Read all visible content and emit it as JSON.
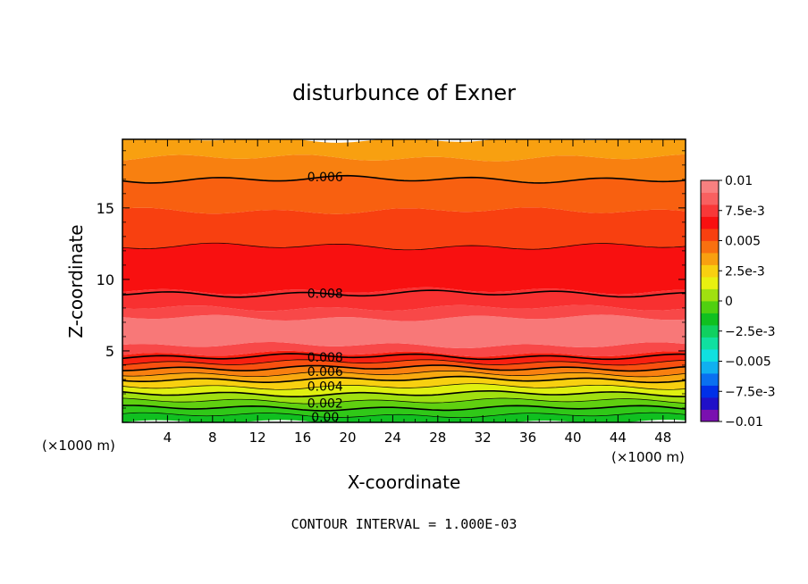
{
  "chart_data": {
    "type": "contour",
    "title": "disturbunce of Exner",
    "xlabel": "X-coordinate",
    "ylabel": "Z-coordinate",
    "x_unit_left": "(×1000 m)",
    "x_unit_right": "(×1000 m)",
    "footer": "CONTOUR INTERVAL = 1.000E-03",
    "xlim": [
      0,
      50
    ],
    "ylim": [
      0,
      19.8
    ],
    "x_ticks": [
      4,
      8,
      12,
      16,
      20,
      24,
      28,
      32,
      36,
      40,
      44,
      48
    ],
    "x_tick_labels": [
      "4",
      "8",
      "12",
      "16",
      "20",
      "24",
      "28",
      "32",
      "36",
      "40",
      "44",
      "48"
    ],
    "y_ticks": [
      5,
      10,
      15
    ],
    "y_tick_labels": [
      "5",
      "10",
      "15"
    ],
    "colorbar": {
      "min": -0.01,
      "max": 0.01,
      "labels": [
        "0.01",
        "7.5e-3",
        "0.005",
        "2.5e-3",
        "0",
        "−2.5e-3",
        "−0.005",
        "−7.5e-3",
        "−0.01"
      ],
      "colors": [
        "#7a10b0",
        "#2010c8",
        "#0030e8",
        "#0a70f0",
        "#10b0f0",
        "#10e0e0",
        "#10e0a0",
        "#10d060",
        "#10c020",
        "#50d010",
        "#a0e010",
        "#e8f010",
        "#f8d010",
        "#f8a010",
        "#f87010",
        "#f84010",
        "#f81010",
        "#f83838",
        "#f86060",
        "#f88080"
      ]
    },
    "fill_bands": [
      {
        "y_bottom": 0.0,
        "y_top": 0.5,
        "color": "#10c020"
      },
      {
        "y_bottom": 0.5,
        "y_top": 1.0,
        "color": "#30c818"
      },
      {
        "y_bottom": 1.0,
        "y_top": 1.5,
        "color": "#60d010"
      },
      {
        "y_bottom": 1.5,
        "y_top": 2.0,
        "color": "#a0e010"
      },
      {
        "y_bottom": 2.0,
        "y_top": 2.5,
        "color": "#e0f010"
      },
      {
        "y_bottom": 2.5,
        "y_top": 3.0,
        "color": "#f8d010"
      },
      {
        "y_bottom": 3.0,
        "y_top": 3.4,
        "color": "#f8a810"
      },
      {
        "y_bottom": 3.4,
        "y_top": 3.8,
        "color": "#f88010"
      },
      {
        "y_bottom": 3.8,
        "y_top": 4.2,
        "color": "#f85010"
      },
      {
        "y_bottom": 4.2,
        "y_top": 4.8,
        "color": "#f82010"
      },
      {
        "y_bottom": 4.8,
        "y_top": 5.4,
        "color": "#f84848"
      },
      {
        "y_bottom": 5.4,
        "y_top": 7.3,
        "color": "#f87878"
      },
      {
        "y_bottom": 7.3,
        "y_top": 8.0,
        "color": "#f84848"
      },
      {
        "y_bottom": 8.0,
        "y_top": 9.2,
        "color": "#f83030"
      },
      {
        "y_bottom": 9.2,
        "y_top": 12.3,
        "color": "#f81010"
      },
      {
        "y_bottom": 12.3,
        "y_top": 14.8,
        "color": "#f84010"
      },
      {
        "y_bottom": 14.8,
        "y_top": 17.0,
        "color": "#f86010"
      },
      {
        "y_bottom": 17.0,
        "y_top": 18.5,
        "color": "#f88010"
      },
      {
        "y_bottom": 18.5,
        "y_top": 19.8,
        "color": "#f8a010"
      }
    ],
    "contour_lines": [
      {
        "z": 0.5,
        "bold": false
      },
      {
        "z": 1.0,
        "bold": true
      },
      {
        "z": 1.5,
        "bold": false
      },
      {
        "z": 2.0,
        "bold": true
      },
      {
        "z": 2.5,
        "bold": false
      },
      {
        "z": 3.0,
        "bold": true
      },
      {
        "z": 3.4,
        "bold": false
      },
      {
        "z": 3.8,
        "bold": true
      },
      {
        "z": 4.2,
        "bold": false
      },
      {
        "z": 4.6,
        "bold": true
      },
      {
        "z": 9.0,
        "bold": true
      },
      {
        "z": 12.3,
        "bold": false
      },
      {
        "z": 17.0,
        "bold": true
      }
    ],
    "contour_labels": [
      {
        "text": "0.006",
        "x": 18,
        "y": 17.0
      },
      {
        "text": "0.008",
        "x": 18,
        "y": 9.0
      },
      {
        "text": "0.008",
        "x": 18,
        "y": 4.5
      },
      {
        "text": "0.006",
        "x": 18,
        "y": 3.4
      },
      {
        "text": "0.004",
        "x": 18,
        "y": 2.5
      },
      {
        "text": "0.002",
        "x": 18,
        "y": 1.5
      },
      {
        "text": "0.00",
        "x": 18,
        "y": 0.5
      }
    ]
  }
}
